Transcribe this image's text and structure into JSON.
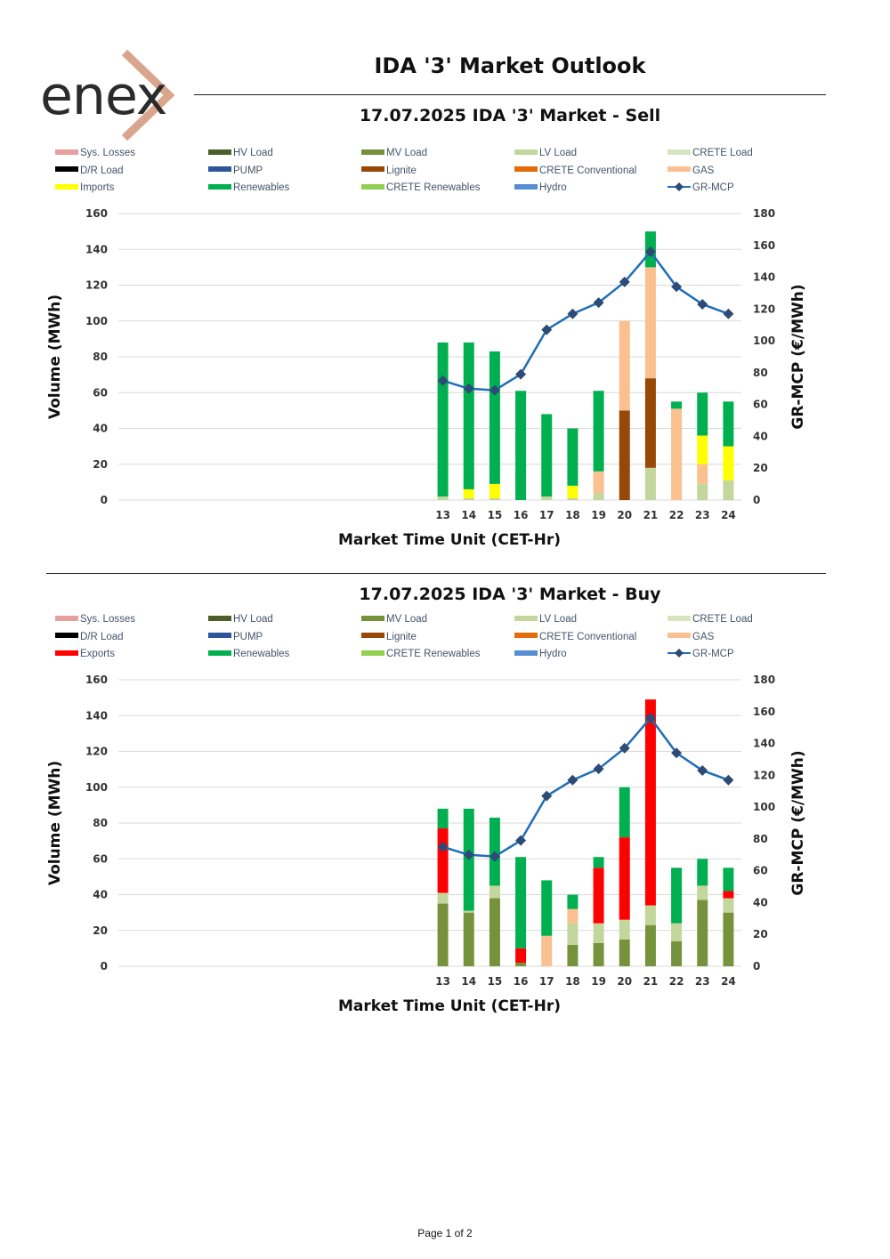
{
  "header": {
    "logo_text": "enex",
    "title": "IDA '3' Market Outlook"
  },
  "colors": {
    "Sys. Losses": "#e6a0a0",
    "HV Load": "#4d5e2a",
    "MV Load": "#76923c",
    "LV Load": "#c3d69b",
    "CRETE Load": "#d7e4bd",
    "D/R Load": "#000000",
    "PUMP": "#2e5597",
    "Lignite": "#974706",
    "CRETE Conventional": "#e36c09",
    "GAS": "#fac090",
    "Imports": "#ffff00",
    "Exports": "#ff0000",
    "Renewables": "#00b050",
    "CRETE Renewables": "#92d050",
    "Hydro": "#558ed5",
    "GR-MCP": "#1f6fb7",
    "GR-MCP-marker": "#2e4a75"
  },
  "chart_data": [
    {
      "type": "bar",
      "stacked": true,
      "title": "17.07.2025  IDA '3' Market - Sell",
      "xlabel": "Market Time Unit (CET-Hr)",
      "ylabel": "Volume (MWh)",
      "y2label": "GR-MCP (€/MWh)",
      "ylim": [
        0,
        160
      ],
      "y2lim": [
        0,
        180
      ],
      "yticks": [
        0,
        20,
        40,
        60,
        80,
        100,
        120,
        140,
        160
      ],
      "y2ticks": [
        0,
        20,
        40,
        60,
        80,
        100,
        120,
        140,
        160,
        180
      ],
      "legend": [
        "Sys. Losses",
        "HV Load",
        "MV Load",
        "LV Load",
        "CRETE Load",
        "D/R Load",
        "PUMP",
        "Lignite",
        "CRETE Conventional",
        "GAS",
        "Imports",
        "Renewables",
        "CRETE Renewables",
        "Hydro",
        "GR-MCP"
      ],
      "categories": [
        "13",
        "14",
        "15",
        "16",
        "17",
        "18",
        "19",
        "20",
        "21",
        "22",
        "23",
        "24"
      ],
      "series": [
        {
          "name": "LV Load",
          "values": [
            2,
            1,
            1,
            0,
            2,
            1,
            4,
            0,
            18,
            0,
            9,
            11
          ]
        },
        {
          "name": "Lignite",
          "values": [
            0,
            0,
            0,
            0,
            0,
            0,
            0,
            50,
            50,
            0,
            0,
            0
          ]
        },
        {
          "name": "GAS",
          "values": [
            0,
            0,
            0,
            0,
            0,
            0,
            12,
            50,
            62,
            51,
            11,
            0
          ]
        },
        {
          "name": "Imports",
          "values": [
            0,
            5,
            8,
            0,
            0,
            7,
            0,
            0,
            0,
            0,
            16,
            19
          ]
        },
        {
          "name": "Renewables",
          "values": [
            86,
            82,
            74,
            61,
            46,
            32,
            45,
            0,
            20,
            4,
            24,
            25
          ]
        }
      ],
      "line": {
        "name": "GR-MCP",
        "values": [
          75,
          70,
          69,
          79,
          107,
          117,
          124,
          137,
          156,
          134,
          123,
          117
        ]
      }
    },
    {
      "type": "bar",
      "stacked": true,
      "title": "17.07.2025  IDA '3' Market - Buy",
      "xlabel": "Market Time Unit (CET-Hr)",
      "ylabel": "Volume (MWh)",
      "y2label": "GR-MCP (€/MWh)",
      "ylim": [
        0,
        160
      ],
      "y2lim": [
        0,
        180
      ],
      "yticks": [
        0,
        20,
        40,
        60,
        80,
        100,
        120,
        140,
        160
      ],
      "y2ticks": [
        0,
        20,
        40,
        60,
        80,
        100,
        120,
        140,
        160,
        180
      ],
      "legend": [
        "Sys. Losses",
        "HV Load",
        "MV Load",
        "LV Load",
        "CRETE Load",
        "D/R Load",
        "PUMP",
        "Lignite",
        "CRETE Conventional",
        "GAS",
        "Exports",
        "Renewables",
        "CRETE Renewables",
        "Hydro",
        "GR-MCP"
      ],
      "categories": [
        "13",
        "14",
        "15",
        "16",
        "17",
        "18",
        "19",
        "20",
        "21",
        "22",
        "23",
        "24"
      ],
      "series": [
        {
          "name": "MV Load",
          "values": [
            35,
            30,
            38,
            2,
            0,
            12,
            13,
            15,
            23,
            14,
            37,
            30
          ]
        },
        {
          "name": "LV Load",
          "values": [
            6,
            1,
            7,
            0,
            0,
            12,
            11,
            11,
            11,
            10,
            8,
            8
          ]
        },
        {
          "name": "GAS",
          "values": [
            0,
            0,
            0,
            0,
            17,
            8,
            0,
            0,
            0,
            0,
            0,
            0
          ]
        },
        {
          "name": "Exports",
          "values": [
            36,
            0,
            0,
            8,
            0,
            0,
            31,
            46,
            115,
            0,
            0,
            4
          ]
        },
        {
          "name": "Renewables",
          "values": [
            11,
            57,
            38,
            51,
            31,
            8,
            6,
            28,
            0,
            31,
            15,
            13
          ]
        }
      ],
      "line": {
        "name": "GR-MCP",
        "values": [
          75,
          70,
          69,
          79,
          107,
          117,
          124,
          137,
          156,
          134,
          123,
          117
        ]
      }
    }
  ],
  "footer": {
    "page_label": "Page 1 of 2"
  }
}
